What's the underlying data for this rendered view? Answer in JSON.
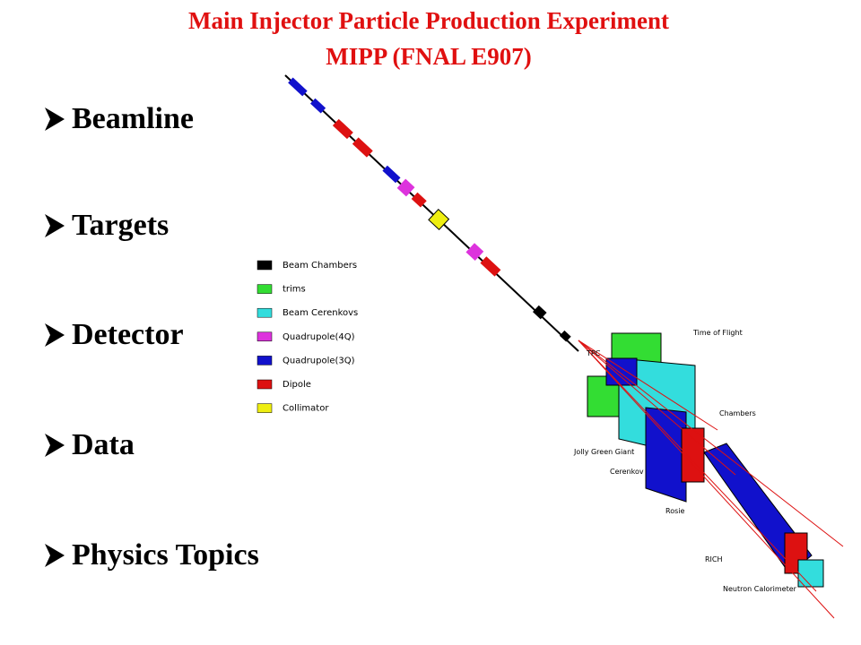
{
  "header": {
    "title": "Main Injector  Particle Production  Experiment",
    "subtitle": "MIPP (FNAL E907)"
  },
  "bullets": [
    "Beamline",
    "Targets",
    "Detector",
    "Data",
    "Physics Topics"
  ],
  "legend": [
    {
      "label": "Beam Chambers",
      "color": "#000000"
    },
    {
      "label": "trims",
      "color": "#33dd33"
    },
    {
      "label": "Beam Cerenkovs",
      "color": "#33dddd"
    },
    {
      "label": "Quadrupole(4Q)",
      "color": "#dd33dd"
    },
    {
      "label": "Quadrupole(3Q)",
      "color": "#1111cc"
    },
    {
      "label": "Dipole",
      "color": "#dd1111"
    },
    {
      "label": "Collimator",
      "color": "#eeee11"
    }
  ],
  "labels": [
    "Time of Flight",
    "TPC",
    "Chambers",
    "Jolly Green Giant",
    "Cerenkov",
    "Rosie",
    "RICH",
    "Neutron Calorimeter"
  ]
}
